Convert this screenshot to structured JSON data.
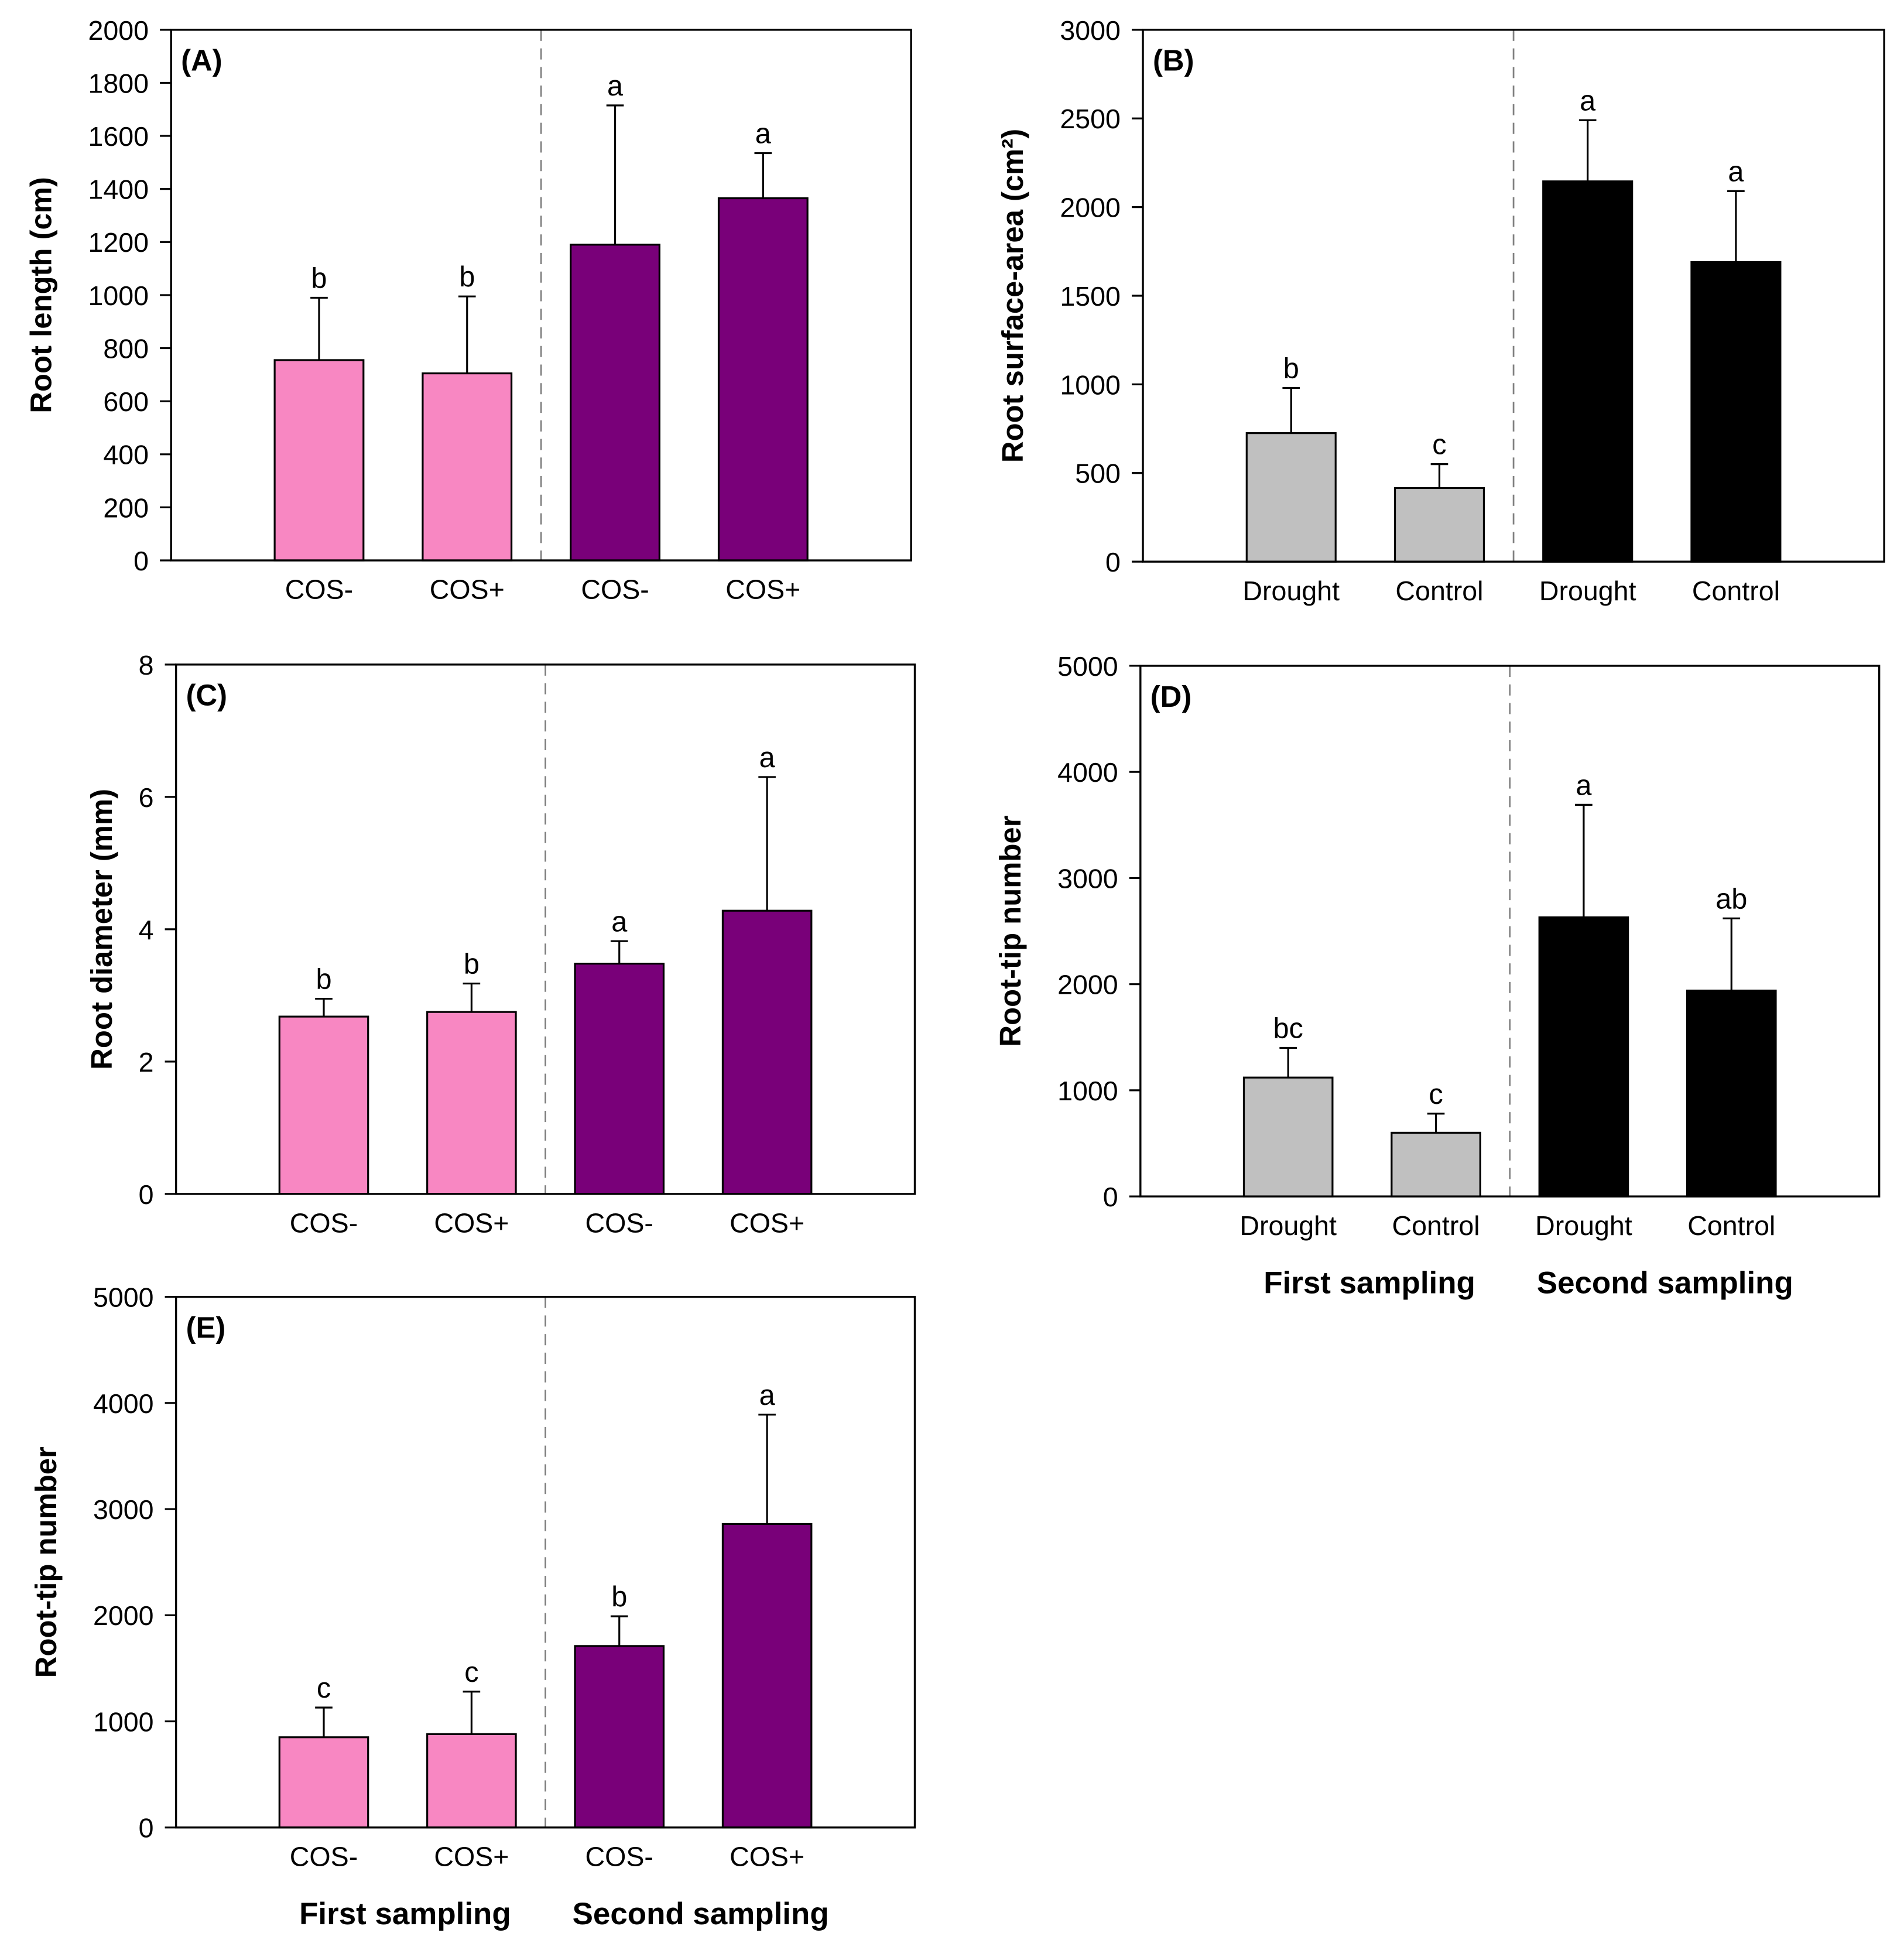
{
  "colors": {
    "first_sampling_cos": "#f887c2",
    "second_sampling_cos": "#790079",
    "first_sampling_drought_control": "#c0c0c0",
    "second_sampling_drought_control": "#000000",
    "divider": "#808080"
  },
  "chart_data": [
    {
      "type": "bar",
      "panel_label": "(A)",
      "categories": [
        "COS-",
        "COS+",
        "COS-",
        "COS+"
      ],
      "values": [
        755,
        705,
        1190,
        1365
      ],
      "errors": [
        235,
        290,
        525,
        170
      ],
      "letters": [
        "b",
        "b",
        "a",
        "a"
      ],
      "bar_colors": [
        "#f887c2",
        "#f887c2",
        "#790079",
        "#790079"
      ],
      "ylabel": "Root length (cm)",
      "ylim": [
        0,
        2000
      ],
      "yticks": [
        0,
        200,
        400,
        600,
        800,
        1000,
        1200,
        1400,
        1600,
        1800,
        2000
      ],
      "group_labels": []
    },
    {
      "type": "bar",
      "panel_label": "(B)",
      "categories": [
        "Drought",
        "Control",
        "Drought",
        "Control"
      ],
      "values": [
        725,
        415,
        2145,
        1690
      ],
      "errors": [
        255,
        135,
        345,
        400
      ],
      "letters": [
        "b",
        "c",
        "a",
        "a"
      ],
      "bar_colors": [
        "#c0c0c0",
        "#c0c0c0",
        "#000000",
        "#000000"
      ],
      "ylabel": "Root surface-area (cm²)",
      "ylim": [
        0,
        3000
      ],
      "yticks": [
        0,
        500,
        1000,
        1500,
        2000,
        2500,
        3000
      ],
      "group_labels": []
    },
    {
      "type": "bar",
      "panel_label": "(C)",
      "categories": [
        "COS-",
        "COS+",
        "COS-",
        "COS+"
      ],
      "values": [
        2.68,
        2.75,
        3.48,
        4.28
      ],
      "errors": [
        0.27,
        0.43,
        0.34,
        2.02
      ],
      "letters": [
        "b",
        "b",
        "a",
        "a"
      ],
      "bar_colors": [
        "#f887c2",
        "#f887c2",
        "#790079",
        "#790079"
      ],
      "ylabel": "Root diameter (mm)",
      "ylim": [
        0,
        8
      ],
      "yticks": [
        0,
        2,
        4,
        6,
        8
      ],
      "group_labels": []
    },
    {
      "type": "bar",
      "panel_label": "(D)",
      "categories": [
        "Drought",
        "Control",
        "Drought",
        "Control"
      ],
      "values": [
        1120,
        600,
        2630,
        1940
      ],
      "errors": [
        280,
        180,
        1060,
        680
      ],
      "letters": [
        "bc",
        "c",
        "a",
        "ab"
      ],
      "bar_colors": [
        "#c0c0c0",
        "#c0c0c0",
        "#000000",
        "#000000"
      ],
      "ylabel": "Root-tip number",
      "ylim": [
        0,
        5000
      ],
      "yticks": [
        0,
        1000,
        2000,
        3000,
        4000,
        5000
      ],
      "group_labels": [
        "First sampling",
        "Second sampling"
      ]
    },
    {
      "type": "bar",
      "panel_label": "(E)",
      "categories": [
        "COS-",
        "COS+",
        "COS-",
        "COS+"
      ],
      "values": [
        850,
        880,
        1710,
        2860
      ],
      "errors": [
        280,
        400,
        280,
        1030
      ],
      "letters": [
        "c",
        "c",
        "b",
        "a"
      ],
      "bar_colors": [
        "#f887c2",
        "#f887c2",
        "#790079",
        "#790079"
      ],
      "ylabel": "Root-tip number",
      "ylim": [
        0,
        5000
      ],
      "yticks": [
        0,
        1000,
        2000,
        3000,
        4000,
        5000
      ],
      "group_labels": [
        "First sampling",
        "Second sampling"
      ]
    }
  ]
}
